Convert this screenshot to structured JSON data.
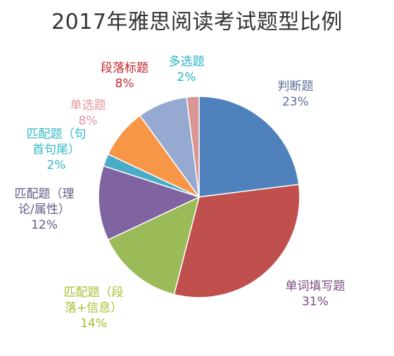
{
  "chart_data": {
    "type": "pie",
    "title": "2017年雅思阅读考试题型比例",
    "legend": "none",
    "slices": [
      {
        "name": "判断题",
        "value": 23,
        "label_lines": [
          "判断题",
          "23%"
        ],
        "color": "#4f81bd",
        "label_color": "#5d6d97"
      },
      {
        "name": "单词填写题",
        "value": 31,
        "label_lines": [
          "单词填写题",
          "31%"
        ],
        "color": "#c0504d",
        "label_color": "#7b4a82"
      },
      {
        "name": "匹配题（段落+信息）",
        "value": 14,
        "label_lines": [
          "匹配题（段",
          "落+信息）",
          "14%"
        ],
        "color": "#9bbb59",
        "label_color": "#a5c030"
      },
      {
        "name": "匹配题（理论/属性）",
        "value": 12,
        "label_lines": [
          "匹配题（理",
          "论/属性）",
          "12%"
        ],
        "color": "#8064a2",
        "label_color": "#5f5d86"
      },
      {
        "name": "匹配题（句首句尾）",
        "value": 2,
        "label_lines": [
          "匹配题（句",
          "首句尾）",
          "2%"
        ],
        "color": "#4bacc6",
        "label_color": "#33b8c8"
      },
      {
        "name": "单选题",
        "value": 8,
        "label_lines": [
          "单选题",
          "8%"
        ],
        "color": "#f79646",
        "label_color": "#e8979d"
      },
      {
        "name": "段落标题",
        "value": 8,
        "label_lines": [
          "段落标题",
          "8%"
        ],
        "color": "#95a9d1",
        "label_color": "#c0272d"
      },
      {
        "name": "多选题",
        "value": 2,
        "label_lines": [
          "多选题",
          "2%"
        ],
        "color": "#d99694",
        "label_color": "#2ab3c4"
      }
    ]
  }
}
